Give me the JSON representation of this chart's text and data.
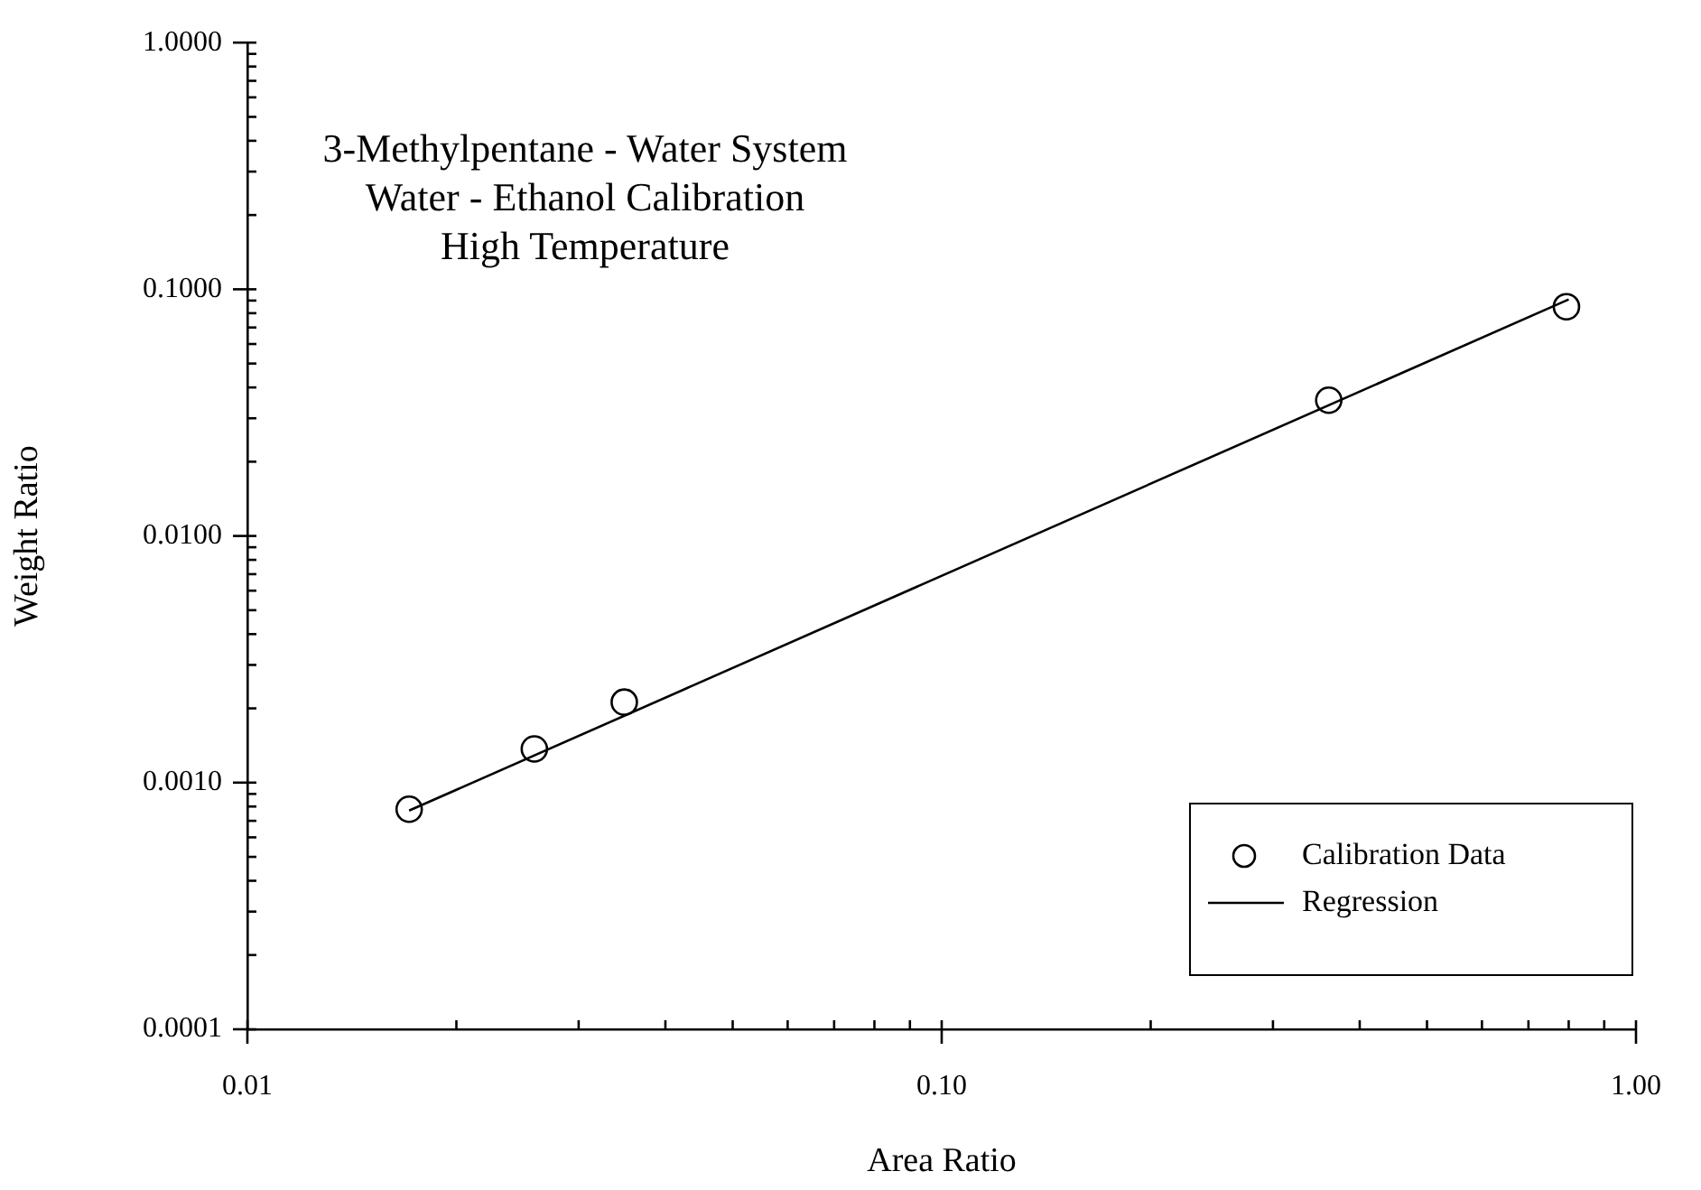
{
  "chart_data": {
    "type": "scatter",
    "xlabel": "Area Ratio",
    "ylabel": "Weight Ratio",
    "annotations": [
      "3-Methylpentane - Water System",
      "Water - Ethanol Calibration",
      "High Temperature"
    ],
    "log": "xy",
    "xlim": [
      0.01,
      1
    ],
    "ylim": [
      0.0001,
      1
    ],
    "xticks": [
      {
        "value": 0.01,
        "label": "0.01"
      },
      {
        "value": 0.02,
        "label": null
      },
      {
        "value": 0.03,
        "label": null
      },
      {
        "value": 0.04,
        "label": null
      },
      {
        "value": 0.05,
        "label": null
      },
      {
        "value": 0.06,
        "label": null
      },
      {
        "value": 0.07,
        "label": null
      },
      {
        "value": 0.08,
        "label": null
      },
      {
        "value": 0.09,
        "label": null
      },
      {
        "value": 0.1,
        "label": "0.10"
      },
      {
        "value": 0.2,
        "label": null
      },
      {
        "value": 0.3,
        "label": null
      },
      {
        "value": 0.4,
        "label": null
      },
      {
        "value": 0.5,
        "label": null
      },
      {
        "value": 0.6,
        "label": null
      },
      {
        "value": 0.7,
        "label": null
      },
      {
        "value": 0.8,
        "label": null
      },
      {
        "value": 0.9,
        "label": null
      },
      {
        "value": 1,
        "label": "1.00"
      }
    ],
    "yticks": [
      {
        "value": 0.0001,
        "label": "0.0001"
      },
      {
        "value": 0.0002,
        "label": null
      },
      {
        "value": 0.0003,
        "label": null
      },
      {
        "value": 0.0004,
        "label": null
      },
      {
        "value": 0.0005,
        "label": null
      },
      {
        "value": 0.0006,
        "label": null
      },
      {
        "value": 0.0007,
        "label": null
      },
      {
        "value": 0.0008,
        "label": null
      },
      {
        "value": 0.0009,
        "label": null
      },
      {
        "value": 0.001,
        "label": "0.0010"
      },
      {
        "value": 0.002,
        "label": null
      },
      {
        "value": 0.003,
        "label": null
      },
      {
        "value": 0.004,
        "label": null
      },
      {
        "value": 0.005,
        "label": null
      },
      {
        "value": 0.006,
        "label": null
      },
      {
        "value": 0.007,
        "label": null
      },
      {
        "value": 0.008,
        "label": null
      },
      {
        "value": 0.009,
        "label": null
      },
      {
        "value": 0.01,
        "label": "0.0100"
      },
      {
        "value": 0.02,
        "label": null
      },
      {
        "value": 0.03,
        "label": null
      },
      {
        "value": 0.04,
        "label": null
      },
      {
        "value": 0.05,
        "label": null
      },
      {
        "value": 0.06,
        "label": null
      },
      {
        "value": 0.07,
        "label": null
      },
      {
        "value": 0.08,
        "label": null
      },
      {
        "value": 0.09,
        "label": null
      },
      {
        "value": 0.1,
        "label": "0.1000"
      },
      {
        "value": 0.2,
        "label": null
      },
      {
        "value": 0.3,
        "label": null
      },
      {
        "value": 0.4,
        "label": null
      },
      {
        "value": 0.5,
        "label": null
      },
      {
        "value": 0.6,
        "label": null
      },
      {
        "value": 0.7,
        "label": null
      },
      {
        "value": 0.8,
        "label": null
      },
      {
        "value": 0.9,
        "label": null
      },
      {
        "value": 1,
        "label": "1.0000"
      }
    ],
    "legend": "bottom right",
    "grid": false,
    "series": [
      {
        "name": "Calibration Data",
        "type": "scatter",
        "marker": "circle",
        "color": "#000000",
        "x": [
          0.0171,
          0.0259,
          0.0349,
          0.361,
          0.794
        ],
        "values": [
          0.00078,
          0.00137,
          0.00212,
          0.0355,
          0.085
        ]
      },
      {
        "name": "Regression",
        "type": "line",
        "marker": "none",
        "line_style": "solid",
        "color": "#000000",
        "x": [
          0.0171,
          0.8
        ],
        "values": [
          0.00077,
          0.091
        ]
      }
    ]
  }
}
